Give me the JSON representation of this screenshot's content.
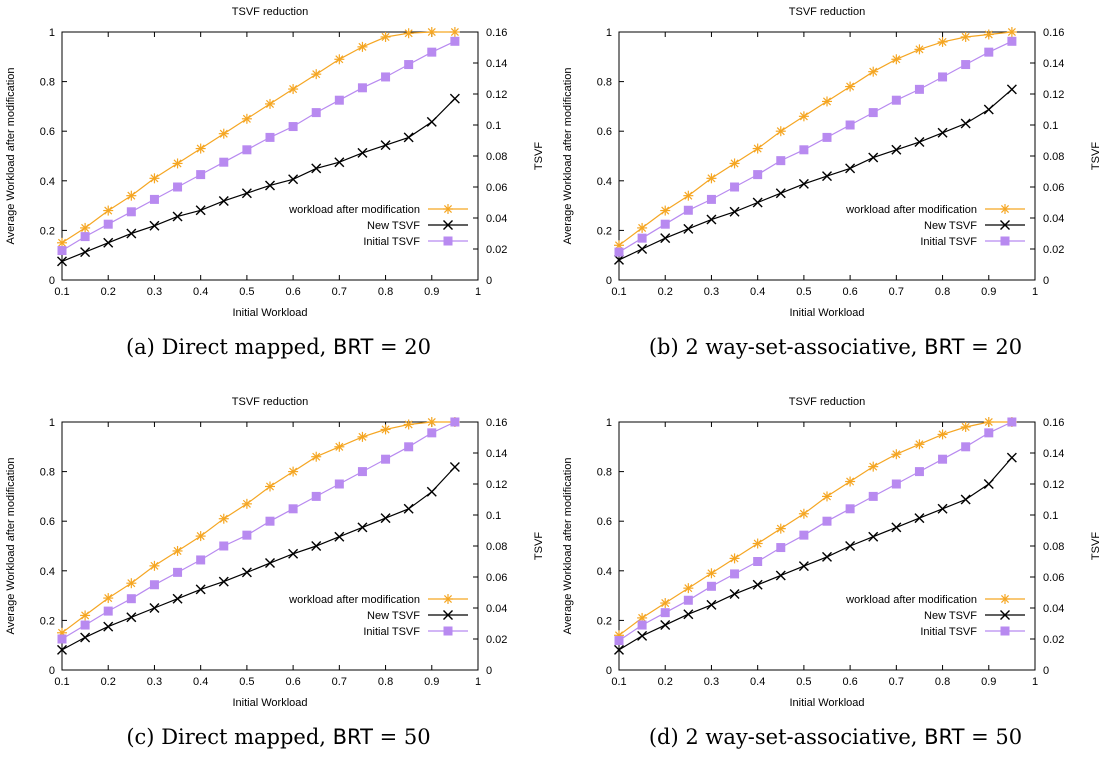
{
  "figures": [
    {
      "caption": {
        "label": "(a)",
        "prefix": "Direct mapped,",
        "brt_label": "BRT",
        "suffix": "= 20"
      }
    },
    {
      "caption": {
        "label": "(b)",
        "prefix": "2 way-set-associative,",
        "brt_label": "BRT",
        "suffix": "= 20"
      }
    },
    {
      "caption": {
        "label": "(c)",
        "prefix": "Direct mapped,",
        "brt_label": "BRT",
        "suffix": "= 50"
      }
    },
    {
      "caption": {
        "label": "(d)",
        "prefix": "2 way-set-associative,",
        "brt_label": "BRT",
        "suffix": "= 50"
      }
    }
  ],
  "colors": {
    "workload": "#f5a623",
    "new_tsvf": "#000000",
    "initial_tsvf": "#b88af0"
  },
  "chart_data": [
    {
      "type": "line",
      "title": "TSVF reduction",
      "xlabel": "Initial Workload",
      "ylabel": "Average Workload after modification",
      "y2label": "TSVF",
      "xlim": [
        0.1,
        1
      ],
      "ylim": [
        0,
        1
      ],
      "y2lim": [
        0,
        0.16
      ],
      "xticks": [
        "0.1",
        "0.2",
        "0.3",
        "0.4",
        "0.5",
        "0.6",
        "0.7",
        "0.8",
        "0.9",
        "1"
      ],
      "yticks": [
        "0",
        "0.2",
        "0.4",
        "0.6",
        "0.8",
        "1"
      ],
      "y2ticks": [
        "0",
        "0.02",
        "0.04",
        "0.06",
        "0.08",
        "0.1",
        "0.12",
        "0.14",
        "0.16"
      ],
      "legend_position": "bottom-right",
      "x": [
        0.1,
        0.15,
        0.2,
        0.25,
        0.3,
        0.35,
        0.4,
        0.45,
        0.5,
        0.55,
        0.6,
        0.65,
        0.7,
        0.75,
        0.8,
        0.85,
        0.9,
        0.95
      ],
      "series": [
        {
          "name": "workload after modification",
          "axis": "y1",
          "marker": "star",
          "color": "#f5a623",
          "values": [
            0.15,
            0.21,
            0.28,
            0.34,
            0.41,
            0.47,
            0.53,
            0.59,
            0.65,
            0.71,
            0.77,
            0.83,
            0.89,
            0.94,
            0.98,
            0.995,
            1.0,
            1.0
          ]
        },
        {
          "name": "New TSVF",
          "axis": "y2",
          "marker": "x",
          "color": "#000000",
          "values": [
            0.012,
            0.018,
            0.024,
            0.03,
            0.035,
            0.041,
            0.045,
            0.051,
            0.056,
            0.061,
            0.065,
            0.072,
            0.076,
            0.082,
            0.087,
            0.092,
            0.102,
            0.117
          ]
        },
        {
          "name": "Initial TSVF",
          "axis": "y2",
          "marker": "square",
          "color": "#b88af0",
          "values": [
            0.019,
            0.028,
            0.036,
            0.044,
            0.052,
            0.06,
            0.068,
            0.076,
            0.084,
            0.092,
            0.099,
            0.108,
            0.116,
            0.124,
            0.131,
            0.139,
            0.147,
            0.154
          ]
        }
      ]
    },
    {
      "type": "line",
      "title": "TSVF reduction",
      "xlabel": "Initial Workload",
      "ylabel": "Average Workload after modification",
      "y2label": "TSVF",
      "xlim": [
        0.1,
        1
      ],
      "ylim": [
        0,
        1
      ],
      "y2lim": [
        0,
        0.16
      ],
      "xticks": [
        "0.1",
        "0.2",
        "0.3",
        "0.4",
        "0.5",
        "0.6",
        "0.7",
        "0.8",
        "0.9",
        "1"
      ],
      "yticks": [
        "0",
        "0.2",
        "0.4",
        "0.6",
        "0.8",
        "1"
      ],
      "y2ticks": [
        "0",
        "0.02",
        "0.04",
        "0.06",
        "0.08",
        "0.1",
        "0.12",
        "0.14",
        "0.16"
      ],
      "legend_position": "bottom-right",
      "x": [
        0.1,
        0.15,
        0.2,
        0.25,
        0.3,
        0.35,
        0.4,
        0.45,
        0.5,
        0.55,
        0.6,
        0.65,
        0.7,
        0.75,
        0.8,
        0.85,
        0.9,
        0.95
      ],
      "series": [
        {
          "name": "workload after modification",
          "axis": "y1",
          "marker": "star",
          "color": "#f5a623",
          "values": [
            0.14,
            0.21,
            0.28,
            0.34,
            0.41,
            0.47,
            0.53,
            0.6,
            0.66,
            0.72,
            0.78,
            0.84,
            0.89,
            0.93,
            0.96,
            0.98,
            0.99,
            1.0
          ]
        },
        {
          "name": "New TSVF",
          "axis": "y2",
          "marker": "x",
          "color": "#000000",
          "values": [
            0.013,
            0.02,
            0.027,
            0.033,
            0.039,
            0.044,
            0.05,
            0.056,
            0.062,
            0.067,
            0.072,
            0.079,
            0.084,
            0.089,
            0.095,
            0.101,
            0.11,
            0.123
          ]
        },
        {
          "name": "Initial TSVF",
          "axis": "y2",
          "marker": "square",
          "color": "#b88af0",
          "values": [
            0.018,
            0.027,
            0.036,
            0.045,
            0.052,
            0.06,
            0.068,
            0.077,
            0.084,
            0.092,
            0.1,
            0.108,
            0.116,
            0.123,
            0.131,
            0.139,
            0.147,
            0.154
          ]
        }
      ]
    },
    {
      "type": "line",
      "title": "TSVF reduction",
      "xlabel": "Initial Workload",
      "ylabel": "Average Workload after modification",
      "y2label": "TSVF",
      "xlim": [
        0.1,
        1
      ],
      "ylim": [
        0,
        1
      ],
      "y2lim": [
        0,
        0.16
      ],
      "xticks": [
        "0.1",
        "0.2",
        "0.3",
        "0.4",
        "0.5",
        "0.6",
        "0.7",
        "0.8",
        "0.9",
        "1"
      ],
      "yticks": [
        "0",
        "0.2",
        "0.4",
        "0.6",
        "0.8",
        "1"
      ],
      "y2ticks": [
        "0",
        "0.02",
        "0.04",
        "0.06",
        "0.08",
        "0.1",
        "0.12",
        "0.14",
        "0.16"
      ],
      "legend_position": "bottom-right",
      "x": [
        0.1,
        0.15,
        0.2,
        0.25,
        0.3,
        0.35,
        0.4,
        0.45,
        0.5,
        0.55,
        0.6,
        0.65,
        0.7,
        0.75,
        0.8,
        0.85,
        0.9,
        0.95
      ],
      "series": [
        {
          "name": "workload after modification",
          "axis": "y1",
          "marker": "star",
          "color": "#f5a623",
          "values": [
            0.15,
            0.22,
            0.29,
            0.35,
            0.42,
            0.48,
            0.54,
            0.61,
            0.67,
            0.74,
            0.8,
            0.86,
            0.9,
            0.94,
            0.97,
            0.99,
            1.0,
            1.0
          ]
        },
        {
          "name": "New TSVF",
          "axis": "y2",
          "marker": "x",
          "color": "#000000",
          "values": [
            0.013,
            0.021,
            0.028,
            0.034,
            0.04,
            0.046,
            0.052,
            0.057,
            0.063,
            0.069,
            0.075,
            0.08,
            0.086,
            0.092,
            0.098,
            0.104,
            0.115,
            0.131
          ]
        },
        {
          "name": "Initial TSVF",
          "axis": "y2",
          "marker": "square",
          "color": "#b88af0",
          "values": [
            0.02,
            0.029,
            0.038,
            0.046,
            0.055,
            0.063,
            0.071,
            0.08,
            0.087,
            0.096,
            0.104,
            0.112,
            0.12,
            0.128,
            0.136,
            0.144,
            0.153,
            0.16
          ]
        }
      ]
    },
    {
      "type": "line",
      "title": "TSVF reduction",
      "xlabel": "Initial Workload",
      "ylabel": "Average Workload after modification",
      "y2label": "TSVF",
      "xlim": [
        0.1,
        1
      ],
      "ylim": [
        0,
        1
      ],
      "y2lim": [
        0,
        0.16
      ],
      "xticks": [
        "0.1",
        "0.2",
        "0.3",
        "0.4",
        "0.5",
        "0.6",
        "0.7",
        "0.8",
        "0.9",
        "1"
      ],
      "yticks": [
        "0",
        "0.2",
        "0.4",
        "0.6",
        "0.8",
        "1"
      ],
      "y2ticks": [
        "0",
        "0.02",
        "0.04",
        "0.06",
        "0.08",
        "0.1",
        "0.12",
        "0.14",
        "0.16"
      ],
      "legend_position": "bottom-right",
      "x": [
        0.1,
        0.15,
        0.2,
        0.25,
        0.3,
        0.35,
        0.4,
        0.45,
        0.5,
        0.55,
        0.6,
        0.65,
        0.7,
        0.75,
        0.8,
        0.85,
        0.9,
        0.95
      ],
      "series": [
        {
          "name": "workload after modification",
          "axis": "y1",
          "marker": "star",
          "color": "#f5a623",
          "values": [
            0.14,
            0.21,
            0.27,
            0.33,
            0.39,
            0.45,
            0.51,
            0.57,
            0.63,
            0.7,
            0.76,
            0.82,
            0.87,
            0.91,
            0.95,
            0.98,
            1.0,
            1.0
          ]
        },
        {
          "name": "New TSVF",
          "axis": "y2",
          "marker": "x",
          "color": "#000000",
          "values": [
            0.013,
            0.022,
            0.029,
            0.036,
            0.042,
            0.049,
            0.055,
            0.061,
            0.067,
            0.073,
            0.08,
            0.086,
            0.092,
            0.098,
            0.104,
            0.11,
            0.12,
            0.137
          ]
        },
        {
          "name": "Initial TSVF",
          "axis": "y2",
          "marker": "square",
          "color": "#b88af0",
          "values": [
            0.019,
            0.029,
            0.037,
            0.045,
            0.054,
            0.062,
            0.07,
            0.079,
            0.087,
            0.096,
            0.104,
            0.112,
            0.12,
            0.128,
            0.136,
            0.144,
            0.153,
            0.16
          ]
        }
      ]
    }
  ]
}
